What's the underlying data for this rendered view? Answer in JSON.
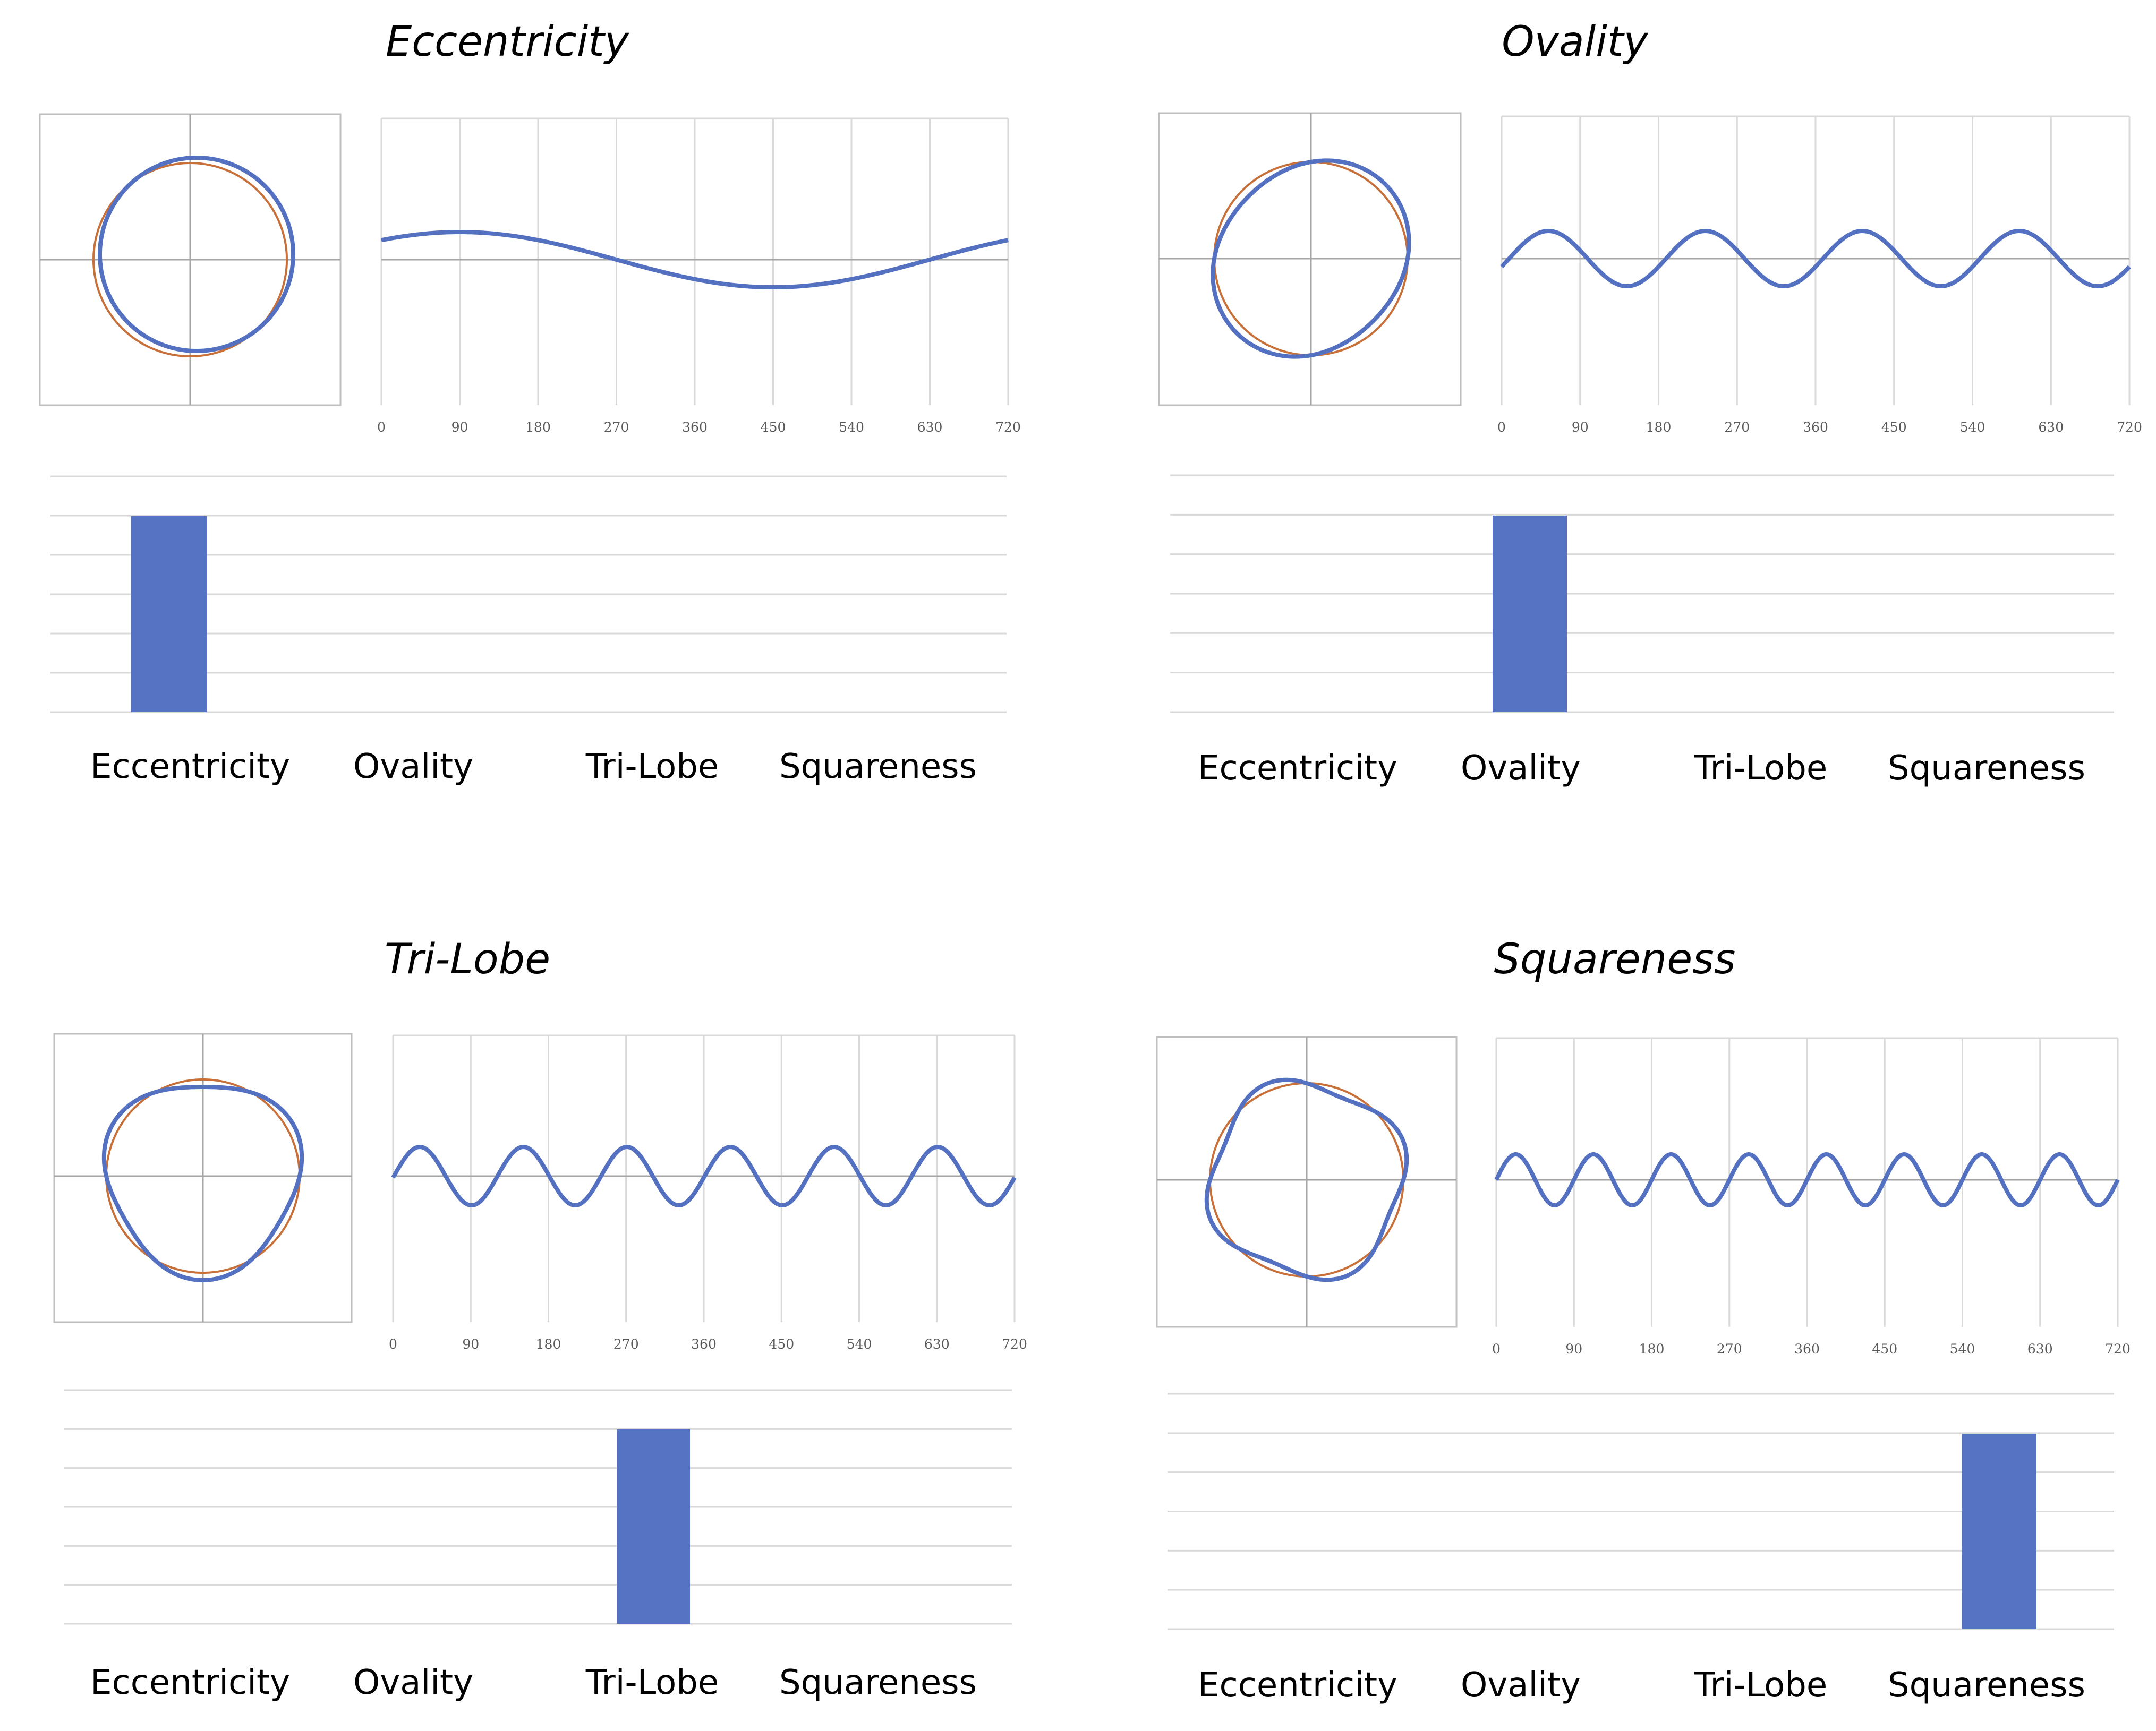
{
  "colors": {
    "profile": "#5470C1",
    "reference": "#C8703A",
    "bar": "#5672C2",
    "grid": "#D9D9D9",
    "frame": "#BFBFBF",
    "axis": "#A6A6A6"
  },
  "chart_data": [
    {
      "title": "Eccentricity",
      "polar": {
        "type": "line",
        "harmonic": 1,
        "reference": "circle"
      },
      "wave": {
        "type": "line",
        "harmonic": 1,
        "x_ticks": [
          "0",
          "90",
          "180",
          "270",
          "360",
          "450",
          "540",
          "630",
          "720"
        ],
        "xlim": [
          0,
          720
        ]
      },
      "bars": {
        "type": "bar",
        "categories": [
          "Eccentricity",
          "Ovality",
          "Tri-Lobe",
          "Squareness"
        ],
        "values": [
          1,
          0,
          0,
          0
        ]
      }
    },
    {
      "title": "Ovality",
      "polar": {
        "type": "line",
        "harmonic": 2,
        "reference": "circle"
      },
      "wave": {
        "type": "line",
        "harmonic": 4,
        "x_ticks": [
          "0",
          "90",
          "180",
          "270",
          "360",
          "450",
          "540",
          "630",
          "720"
        ],
        "xlim": [
          0,
          720
        ]
      },
      "bars": {
        "type": "bar",
        "categories": [
          "Eccentricity",
          "Ovality",
          "Tri-Lobe",
          "Squareness"
        ],
        "values": [
          0,
          1,
          0,
          0
        ]
      }
    },
    {
      "title": "Tri-Lobe",
      "polar": {
        "type": "line",
        "harmonic": 3,
        "reference": "circle"
      },
      "wave": {
        "type": "line",
        "harmonic": 6,
        "x_ticks": [
          "0",
          "90",
          "180",
          "270",
          "360",
          "450",
          "540",
          "630",
          "720"
        ],
        "xlim": [
          0,
          720
        ]
      },
      "bars": {
        "type": "bar",
        "categories": [
          "Eccentricity",
          "Ovality",
          "Tri-Lobe",
          "Squareness"
        ],
        "values": [
          0,
          0,
          1,
          0
        ]
      }
    },
    {
      "title": "Squareness",
      "polar": {
        "type": "line",
        "harmonic": 4,
        "reference": "circle"
      },
      "wave": {
        "type": "line",
        "harmonic": 8,
        "x_ticks": [
          "0",
          "90",
          "180",
          "270",
          "360",
          "450",
          "540",
          "630",
          "720"
        ],
        "xlim": [
          0,
          720
        ]
      },
      "bars": {
        "type": "bar",
        "categories": [
          "Eccentricity",
          "Ovality",
          "Tri-Lobe",
          "Squareness"
        ],
        "values": [
          0,
          0,
          0,
          1
        ]
      }
    }
  ]
}
